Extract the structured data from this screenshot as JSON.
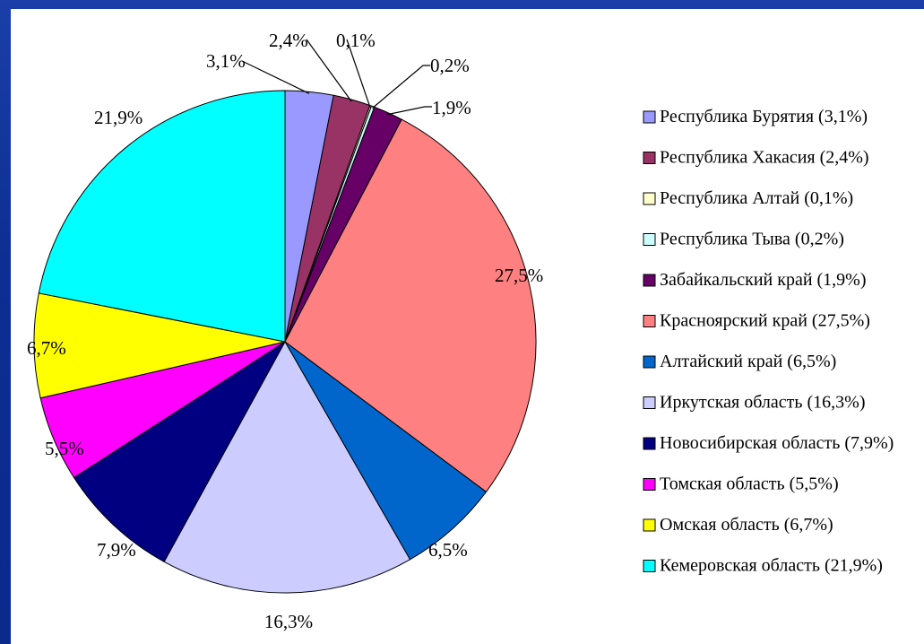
{
  "chart_data": {
    "type": "pie",
    "title": "",
    "colors_note": "slice colors listed per slice",
    "slices": [
      {
        "label": "Республика Бурятия (3,1%)",
        "value": 3.1,
        "value_label": "3,1%",
        "color": "#9999ff"
      },
      {
        "label": "Республика Хакасия (2,4%)",
        "value": 2.4,
        "value_label": "2,4%",
        "color": "#993366"
      },
      {
        "label": "Республика Алтай (0,1%)",
        "value": 0.1,
        "value_label": "0,1%",
        "color": "#ffffcc"
      },
      {
        "label": "Республика Тыва (0,2%)",
        "value": 0.2,
        "value_label": "0,2%",
        "color": "#ccffff"
      },
      {
        "label": "Забайкальский край (1,9%)",
        "value": 1.9,
        "value_label": "1,9%",
        "color": "#660066"
      },
      {
        "label": "Красноярский край (27,5%)",
        "value": 27.5,
        "value_label": "27,5%",
        "color": "#ff8080"
      },
      {
        "label": "Алтайский край (6,5%)",
        "value": 6.5,
        "value_label": "6,5%",
        "color": "#0066cc"
      },
      {
        "label": "Иркутская область (16,3%)",
        "value": 16.3,
        "value_label": "16,3%",
        "color": "#ccccff"
      },
      {
        "label": "Новосибирская область (7,9%)",
        "value": 7.9,
        "value_label": "7,9%",
        "color": "#000080"
      },
      {
        "label": "Томская область (5,5%)",
        "value": 5.5,
        "value_label": "5,5%",
        "color": "#ff00ff"
      },
      {
        "label": "Омская область (6,7%)",
        "value": 6.7,
        "value_label": "6,7%",
        "color": "#ffff00"
      },
      {
        "label": "Кемеровская область (21,9%)",
        "value": 21.9,
        "value_label": "21,9%",
        "color": "#00ffff"
      }
    ],
    "legend_position": "right"
  }
}
